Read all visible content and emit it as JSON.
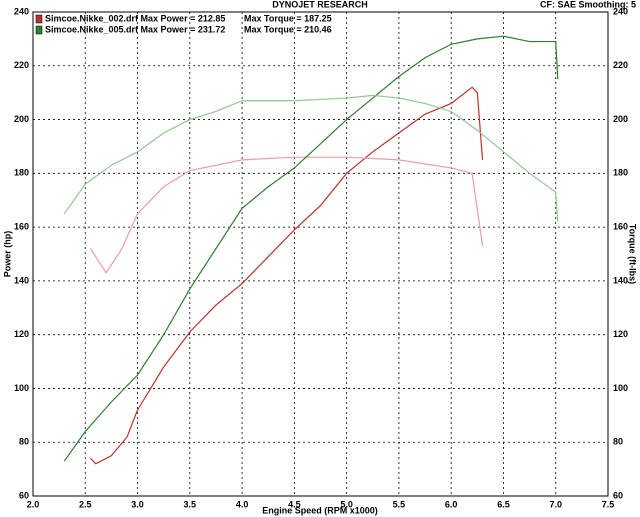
{
  "chart_data": {
    "type": "line",
    "title": "DYNOJET RESEARCH",
    "subtitle": "CF: SAE  Smoothing: 5",
    "xlabel": "Engine Speed (RPM x1000)",
    "ylabel": "Power (hp)",
    "y2label": "Torque (ft-lbs)",
    "xlim": [
      2.0,
      7.5
    ],
    "xticks": [
      {
        "value": 2.0,
        "label": "2.0"
      },
      2.5,
      {
        "value": 3.0,
        "label": "3.0"
      },
      3.5,
      {
        "value": 4.0,
        "label": "4.0"
      },
      4.5,
      {
        "value": 5.0,
        "label": "5.0"
      },
      5.5,
      {
        "value": 6.0,
        "label": "6.0"
      },
      6.5,
      {
        "value": 7.0,
        "label": "7.0"
      },
      7.5
    ],
    "ylim": [
      60,
      240
    ],
    "yticks": [
      60,
      80,
      100,
      120,
      140,
      160,
      180,
      200,
      220,
      240
    ],
    "y2lim": [
      60,
      240
    ],
    "y2ticks": [
      60,
      80,
      100,
      120,
      140,
      160,
      180,
      200,
      220,
      240
    ],
    "grid": true,
    "series": [
      {
        "name": "Simcoe.Nikke_002.drf Max Power = 212.85",
        "color": "#c0302a",
        "x": [
          2.55,
          2.6,
          2.75,
          2.9,
          3.0,
          3.25,
          3.5,
          3.75,
          4.0,
          4.25,
          4.5,
          4.75,
          5.0,
          5.25,
          5.5,
          5.75,
          6.0,
          6.2,
          6.25,
          6.3
        ],
        "values": [
          74,
          72,
          75,
          82,
          92,
          108,
          121,
          131,
          139,
          149,
          159,
          168,
          180,
          188,
          195,
          202,
          206,
          212,
          210,
          185
        ]
      },
      {
        "name": "Max Torque = 187.25",
        "color": "#e8a0a0",
        "axis": "y2",
        "x": [
          2.55,
          2.65,
          2.7,
          2.85,
          3.0,
          3.25,
          3.5,
          4.0,
          4.5,
          5.0,
          5.5,
          6.0,
          6.2,
          6.3
        ],
        "values": [
          152,
          146,
          143,
          152,
          165,
          175,
          181,
          185,
          186,
          186,
          185,
          182,
          180,
          153
        ]
      },
      {
        "name": "Simcoe.Nikke_005.drf Max Power = 231.72",
        "color": "#2e7d2e",
        "x": [
          2.3,
          2.5,
          2.75,
          3.0,
          3.25,
          3.5,
          3.75,
          4.0,
          4.25,
          4.5,
          4.75,
          5.0,
          5.25,
          5.5,
          5.75,
          6.0,
          6.25,
          6.5,
          6.75,
          7.0,
          7.02
        ],
        "values": [
          73,
          84,
          95,
          105,
          120,
          137,
          152,
          167,
          175,
          182,
          191,
          200,
          208,
          216,
          223,
          228,
          230,
          231,
          229,
          229,
          215
        ]
      },
      {
        "name": "Max Torque = 210.46",
        "color": "#90c890",
        "axis": "y2",
        "x": [
          2.3,
          2.5,
          2.75,
          3.0,
          3.25,
          3.5,
          3.75,
          4.0,
          4.5,
          5.0,
          5.25,
          5.5,
          5.75,
          6.0,
          6.25,
          6.5,
          6.75,
          7.0,
          7.02
        ],
        "values": [
          165,
          176,
          183,
          188,
          195,
          200,
          203,
          207,
          207,
          208,
          209,
          208,
          206,
          203,
          196,
          188,
          180,
          173,
          162
        ]
      }
    ]
  }
}
